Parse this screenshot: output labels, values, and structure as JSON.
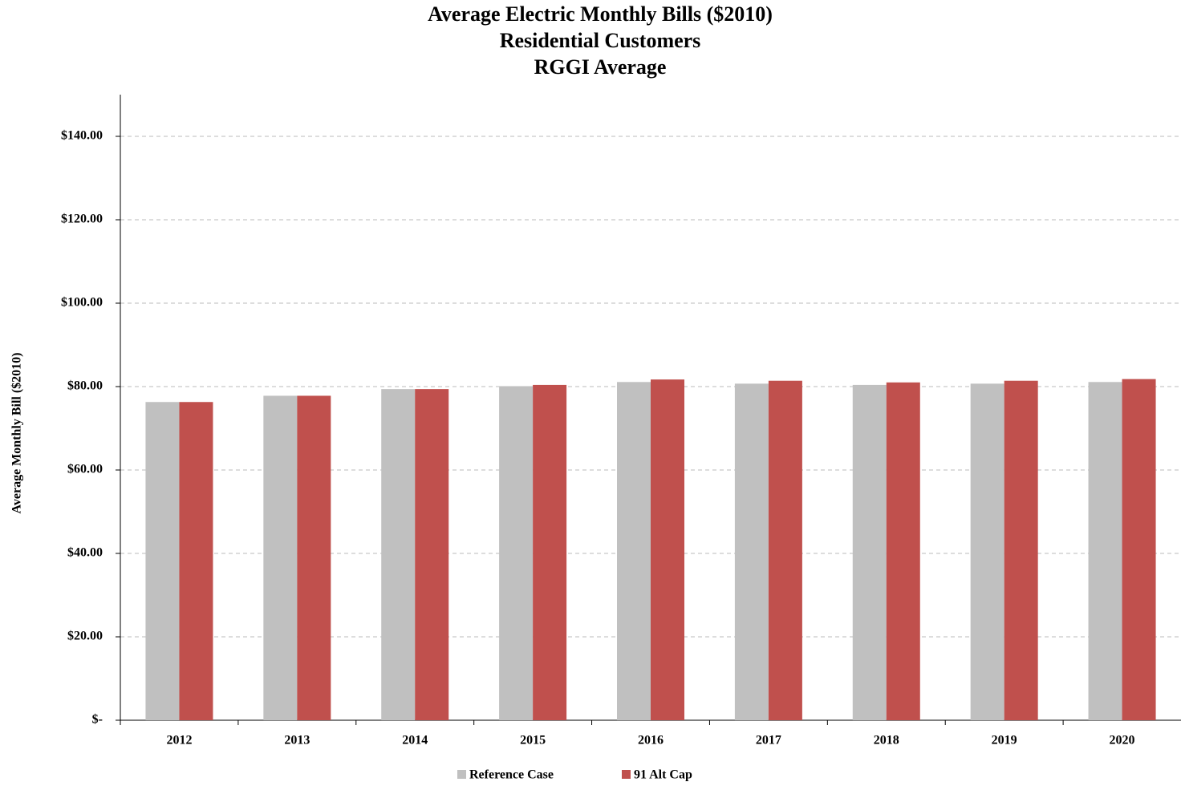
{
  "chart_data": {
    "type": "bar",
    "title": [
      "Average Electric Monthly Bills ($2010)",
      "Residential Customers",
      "RGGI Average"
    ],
    "y_label": "Average  Monthly  Bill ($2010)",
    "categories": [
      "2012",
      "2013",
      "2014",
      "2015",
      "2016",
      "2017",
      "2018",
      "2019",
      "2020"
    ],
    "series": [
      {
        "name": "Reference Case",
        "color": "#c0c0c0",
        "values": [
          76.3,
          77.8,
          79.4,
          80.1,
          81.1,
          80.7,
          80.4,
          80.7,
          81.1
        ]
      },
      {
        "name": "91 Alt Cap",
        "color": "#c0504d",
        "values": [
          76.3,
          77.8,
          79.4,
          80.4,
          81.7,
          81.4,
          81.0,
          81.4,
          81.8
        ]
      }
    ],
    "ylim": [
      0,
      150
    ],
    "yticks": [
      {
        "value": 0,
        "label": "$-"
      },
      {
        "value": 20,
        "label": "$20.00"
      },
      {
        "value": 40,
        "label": "$40.00"
      },
      {
        "value": 60,
        "label": "$60.00"
      },
      {
        "value": 80,
        "label": "$80.00"
      },
      {
        "value": 100,
        "label": "$100.00"
      },
      {
        "value": 120,
        "label": "$120.00"
      },
      {
        "value": 140,
        "label": "$140.00"
      }
    ],
    "grid": true,
    "legend": "bottom"
  }
}
